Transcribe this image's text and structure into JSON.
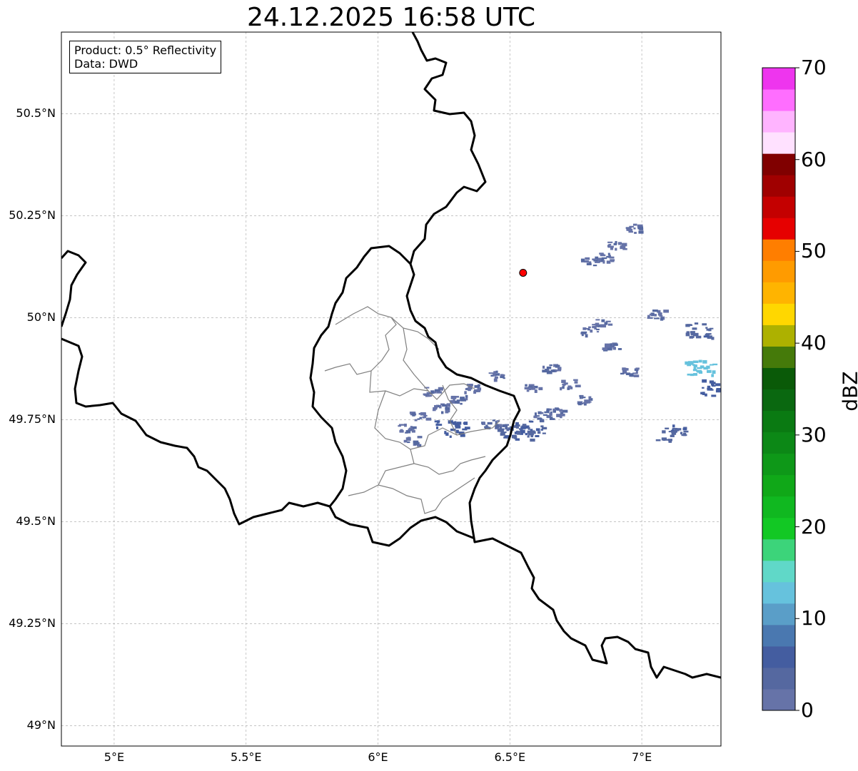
{
  "title": "24.12.2025 16:58 UTC",
  "info_box": {
    "product_line": "Product: 0.5° Reflectivity",
    "data_line": "Data: DWD"
  },
  "map": {
    "lon_range": [
      4.8,
      7.3
    ],
    "lat_range": [
      48.95,
      50.7
    ],
    "lon_ticks": [
      {
        "value": 5.0,
        "label": "5°E"
      },
      {
        "value": 5.5,
        "label": "5.5°E"
      },
      {
        "value": 6.0,
        "label": "6°E"
      },
      {
        "value": 6.5,
        "label": "6.5°E"
      },
      {
        "value": 7.0,
        "label": "7°E"
      }
    ],
    "lat_ticks": [
      {
        "value": 49.0,
        "label": "49°N"
      },
      {
        "value": 49.25,
        "label": "49.25°N"
      },
      {
        "value": 49.5,
        "label": "49.5°N"
      },
      {
        "value": 49.75,
        "label": "49.75°N"
      },
      {
        "value": 50.0,
        "label": "50°N"
      },
      {
        "value": 50.25,
        "label": "50.25°N"
      },
      {
        "value": 50.5,
        "label": "50.5°N"
      }
    ],
    "grid": true,
    "radar_site": {
      "lon": 6.55,
      "lat": 50.11,
      "color": "#ff0000"
    },
    "border_color": "#000000",
    "district_color": "#808080"
  },
  "colorbar": {
    "label": "dBZ",
    "min": 0,
    "max": 70,
    "tick_labels": [
      "0",
      "10",
      "20",
      "30",
      "40",
      "50",
      "60",
      "70"
    ],
    "colors": [
      "#6673a8",
      "#5568a0",
      "#445da0",
      "#4a78b0",
      "#5a9ec8",
      "#66c2dd",
      "#60d8c8",
      "#3cd47a",
      "#12c824",
      "#10b820",
      "#10a818",
      "#0e9818",
      "#0c8816",
      "#0a7a12",
      "#0a6810",
      "#0a5a08",
      "#457a0a",
      "#adb100",
      "#ffd700",
      "#ffb400",
      "#ff9b00",
      "#ff7e00",
      "#e60000",
      "#c40000",
      "#a00000",
      "#800000",
      "#ffe1ff",
      "#ffb4ff",
      "#ff6eff",
      "#ee35ee"
    ]
  },
  "echoes": [
    {
      "lon": 6.47,
      "lat": 49.73,
      "dbz": 3
    },
    {
      "lon": 6.52,
      "lat": 49.72,
      "dbz": 4
    },
    {
      "lon": 6.57,
      "lat": 49.73,
      "dbz": 5
    },
    {
      "lon": 6.42,
      "lat": 49.74,
      "dbz": 3
    },
    {
      "lon": 6.62,
      "lat": 49.76,
      "dbz": 3
    },
    {
      "lon": 6.67,
      "lat": 49.77,
      "dbz": 2
    },
    {
      "lon": 6.3,
      "lat": 49.8,
      "dbz": 2
    },
    {
      "lon": 6.35,
      "lat": 49.83,
      "dbz": 2
    },
    {
      "lon": 6.2,
      "lat": 49.82,
      "dbz": 2
    },
    {
      "lon": 6.23,
      "lat": 49.78,
      "dbz": 2
    },
    {
      "lon": 6.27,
      "lat": 49.73,
      "dbz": 6
    },
    {
      "lon": 6.1,
      "lat": 49.73,
      "dbz": 2
    },
    {
      "lon": 6.13,
      "lat": 49.7,
      "dbz": 2
    },
    {
      "lon": 6.15,
      "lat": 49.76,
      "dbz": 2
    },
    {
      "lon": 6.45,
      "lat": 49.86,
      "dbz": 2
    },
    {
      "lon": 6.58,
      "lat": 49.83,
      "dbz": 2
    },
    {
      "lon": 6.72,
      "lat": 49.84,
      "dbz": 2
    },
    {
      "lon": 6.78,
      "lat": 49.8,
      "dbz": 2
    },
    {
      "lon": 6.8,
      "lat": 50.14,
      "dbz": 2
    },
    {
      "lon": 6.85,
      "lat": 50.15,
      "dbz": 2
    },
    {
      "lon": 6.9,
      "lat": 50.18,
      "dbz": 2
    },
    {
      "lon": 6.97,
      "lat": 50.22,
      "dbz": 2
    },
    {
      "lon": 6.8,
      "lat": 49.97,
      "dbz": 2
    },
    {
      "lon": 6.84,
      "lat": 49.99,
      "dbz": 2
    },
    {
      "lon": 7.05,
      "lat": 50.01,
      "dbz": 2
    },
    {
      "lon": 6.95,
      "lat": 49.87,
      "dbz": 2
    },
    {
      "lon": 7.1,
      "lat": 49.72,
      "dbz": 4
    },
    {
      "lon": 7.22,
      "lat": 49.88,
      "dbz": 13
    },
    {
      "lon": 7.28,
      "lat": 49.83,
      "dbz": 6
    },
    {
      "lon": 7.22,
      "lat": 49.97,
      "dbz": 4
    },
    {
      "lon": 6.88,
      "lat": 49.93,
      "dbz": 2
    },
    {
      "lon": 6.65,
      "lat": 49.88,
      "dbz": 2
    }
  ]
}
